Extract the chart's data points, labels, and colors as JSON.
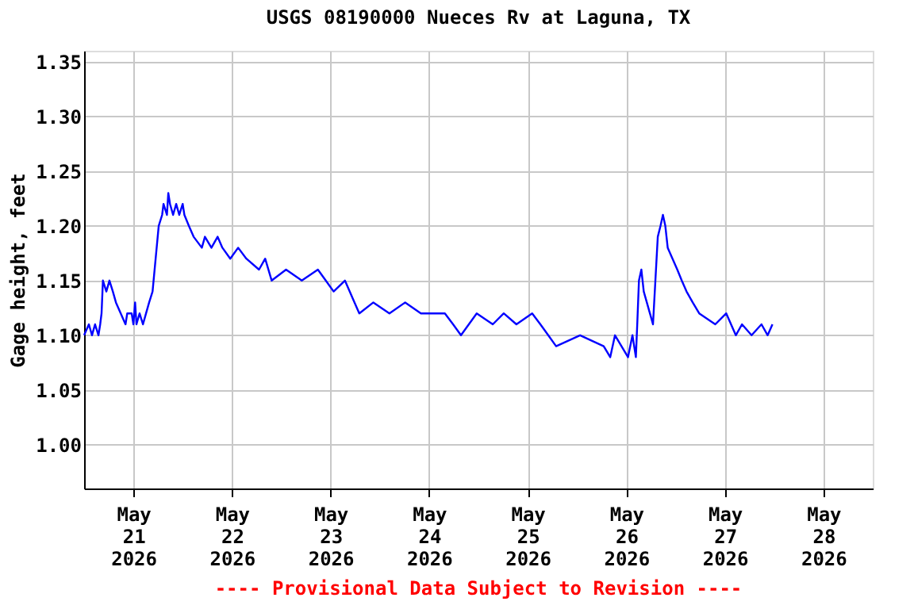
{
  "chart_data": {
    "type": "line",
    "title": "USGS 08190000 Nueces Rv at Laguna, TX",
    "ylabel": "Gage height, feet",
    "annotations": [
      "---- Provisional Data Subject to Revision ----"
    ],
    "xlim": [
      "2026-05-20T12:00",
      "2026-05-28T12:00"
    ],
    "xticks": [
      {
        "value": "2026-05-21",
        "label": "May\n21\n2026"
      },
      {
        "value": "2026-05-22",
        "label": "May\n22\n2026"
      },
      {
        "value": "2026-05-23",
        "label": "May\n23\n2026"
      },
      {
        "value": "2026-05-24",
        "label": "May\n24\n2026"
      },
      {
        "value": "2026-05-25",
        "label": "May\n25\n2026"
      },
      {
        "value": "2026-05-26",
        "label": "May\n26\n2026"
      },
      {
        "value": "2026-05-27",
        "label": "May\n27\n2026"
      },
      {
        "value": "2026-05-28",
        "label": "May\n28\n2026"
      }
    ],
    "ylim": [
      0.96,
      1.36
    ],
    "yticks": [
      {
        "value": 1.0,
        "label": "1.00"
      },
      1.05,
      {
        "value": 1.1,
        "label": "1.10"
      },
      1.15,
      {
        "value": 1.2,
        "label": "1.20"
      },
      1.25,
      {
        "value": 1.3,
        "label": "1.30"
      },
      1.35
    ],
    "grid": true,
    "legend": false,
    "x": [
      "2026-05-20T12:00",
      "2026-05-20T13:10",
      "2026-05-20T13:55",
      "2026-05-20T14:40",
      "2026-05-20T15:30",
      "2026-05-20T15:55",
      "2026-05-20T16:15",
      "2026-05-20T16:35",
      "2026-05-20T17:25",
      "2026-05-20T18:10",
      "2026-05-20T19:00",
      "2026-05-20T19:45",
      "2026-05-20T20:55",
      "2026-05-20T22:05",
      "2026-05-20T22:30",
      "2026-05-20T23:35",
      "2026-05-21T00:00",
      "2026-05-21T00:25",
      "2026-05-21T00:45",
      "2026-05-21T01:30",
      "2026-05-21T02:20",
      "2026-05-21T03:05",
      "2026-05-21T03:50",
      "2026-05-21T04:40",
      "2026-05-21T05:25",
      "2026-05-21T06:10",
      "2026-05-21T07:00",
      "2026-05-21T07:20",
      "2026-05-21T08:10",
      "2026-05-21T08:30",
      "2026-05-21T08:55",
      "2026-05-21T09:40",
      "2026-05-21T10:25",
      "2026-05-21T11:10",
      "2026-05-21T12:00",
      "2026-05-21T12:25",
      "2026-05-21T13:30",
      "2026-05-21T14:40",
      "2026-05-21T16:40",
      "2026-05-21T17:25",
      "2026-05-21T19:00",
      "2026-05-21T20:30",
      "2026-05-21T21:40",
      "2026-05-21T23:35",
      "2026-05-22T01:30",
      "2026-05-22T03:30",
      "2026-05-22T06:35",
      "2026-05-22T08:05",
      "2026-05-22T09:40",
      "2026-05-22T13:10",
      "2026-05-22T17:00",
      "2026-05-22T20:55",
      "2026-05-22T22:50",
      "2026-05-23T00:45",
      "2026-05-23T03:30",
      "2026-05-23T05:50",
      "2026-05-23T07:00",
      "2026-05-23T10:25",
      "2026-05-23T14:20",
      "2026-05-23T18:10",
      "2026-05-23T22:00",
      "2026-05-24T03:50",
      "2026-05-24T05:50",
      "2026-05-24T07:45",
      "2026-05-24T11:35",
      "2026-05-24T15:30",
      "2026-05-24T18:10",
      "2026-05-24T21:15",
      "2026-05-25T01:05",
      "2026-05-25T03:05",
      "2026-05-25T05:00",
      "2026-05-25T06:55",
      "2026-05-25T12:45",
      "2026-05-25T18:30",
      "2026-05-25T20:05",
      "2026-05-25T21:15",
      "2026-05-26T00:25",
      "2026-05-26T01:30",
      "2026-05-26T02:20",
      "2026-05-26T02:40",
      "2026-05-26T03:05",
      "2026-05-26T03:40",
      "2026-05-26T04:15",
      "2026-05-26T05:00",
      "2026-05-26T05:45",
      "2026-05-26T06:30",
      "2026-05-26T07:05",
      "2026-05-26T07:40",
      "2026-05-26T08:20",
      "2026-05-26T08:55",
      "2026-05-26T09:30",
      "2026-05-26T10:05",
      "2026-05-26T11:15",
      "2026-05-26T12:25",
      "2026-05-26T13:30",
      "2026-05-26T14:40",
      "2026-05-26T16:10",
      "2026-05-26T17:45",
      "2026-05-26T21:40",
      "2026-05-27T00:20",
      "2026-05-27T02:40",
      "2026-05-27T04:10",
      "2026-05-27T06:30",
      "2026-05-27T08:55",
      "2026-05-27T10:25",
      "2026-05-27T11:35"
    ],
    "series": [
      {
        "color": "#0000ff",
        "values": [
          1.1,
          1.11,
          1.1,
          1.11,
          1.1,
          1.11,
          1.12,
          1.15,
          1.14,
          1.15,
          1.14,
          1.13,
          1.12,
          1.11,
          1.12,
          1.12,
          1.11,
          1.13,
          1.11,
          1.12,
          1.11,
          1.12,
          1.13,
          1.14,
          1.17,
          1.2,
          1.21,
          1.22,
          1.21,
          1.23,
          1.22,
          1.21,
          1.22,
          1.21,
          1.22,
          1.21,
          1.2,
          1.19,
          1.18,
          1.19,
          1.18,
          1.19,
          1.18,
          1.17,
          1.18,
          1.17,
          1.16,
          1.17,
          1.15,
          1.16,
          1.15,
          1.16,
          1.15,
          1.14,
          1.15,
          1.13,
          1.12,
          1.13,
          1.12,
          1.13,
          1.12,
          1.12,
          1.11,
          1.1,
          1.12,
          1.11,
          1.12,
          1.11,
          1.12,
          1.11,
          1.1,
          1.09,
          1.1,
          1.09,
          1.08,
          1.1,
          1.08,
          1.1,
          1.08,
          1.11,
          1.15,
          1.16,
          1.14,
          1.13,
          1.12,
          1.11,
          1.15,
          1.19,
          1.2,
          1.21,
          1.2,
          1.18,
          1.17,
          1.16,
          1.15,
          1.14,
          1.13,
          1.12,
          1.11,
          1.12,
          1.1,
          1.11,
          1.1,
          1.11,
          1.1,
          1.11
        ]
      }
    ]
  }
}
